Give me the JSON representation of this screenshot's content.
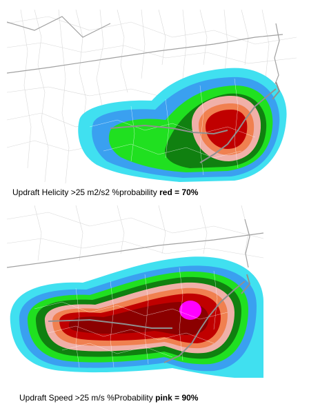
{
  "panels": [
    {
      "caption": {
        "prefix": "Updraft Helicity >25 m2/s2 %probability ",
        "highlight": "red = 70%"
      },
      "probability_colors": [
        "#40e0f0",
        "#3aa0f0",
        "#20e020",
        "#108010",
        "#f0b0a8",
        "#f08050",
        "#c00000"
      ]
    },
    {
      "caption": {
        "prefix": "Updraft Speed >25 m/s  %Probability ",
        "highlight": "pink = 90%"
      },
      "probability_colors": [
        "#40e0f0",
        "#3aa0f0",
        "#20e020",
        "#108010",
        "#f0b0a8",
        "#f08050",
        "#c00000",
        "#8b0000",
        "#ff00ff"
      ]
    }
  ]
}
